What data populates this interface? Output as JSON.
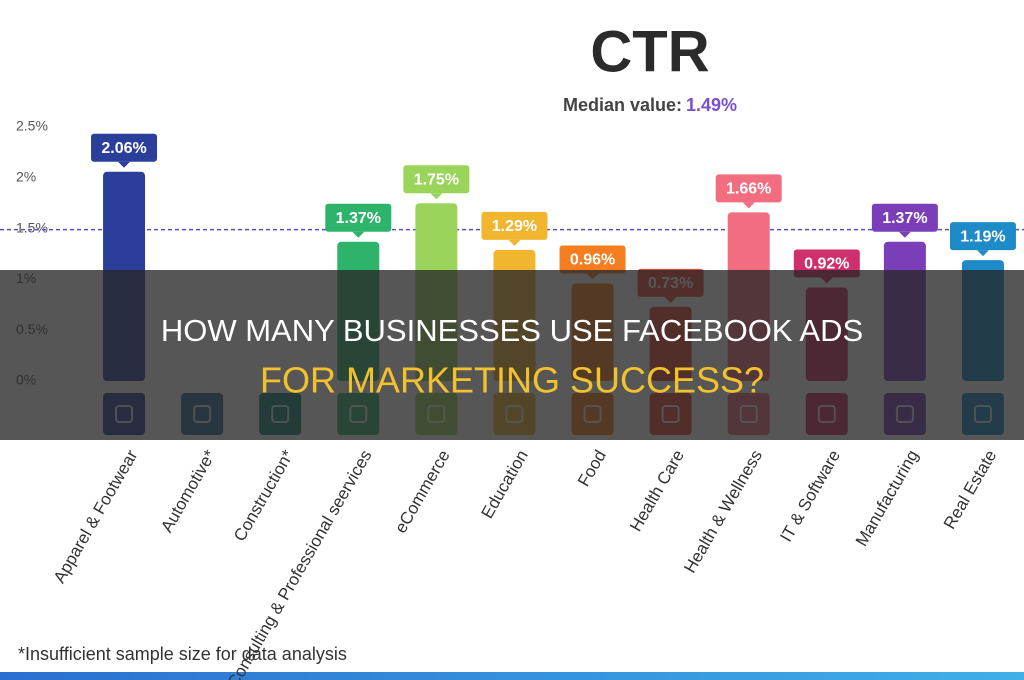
{
  "chart_data": {
    "type": "bar",
    "title": "CTR",
    "median": {
      "label": "Median value:",
      "value": 1.49,
      "value_label": "1.49%"
    },
    "categories": [
      "Apparel & Footwear",
      "Automotive*",
      "Construction*",
      "Consulting & Professional seervices",
      "eCommerce",
      "Education",
      "Food",
      "Health Care",
      "Health & Wellness",
      "IT & Software",
      "Manufacturing",
      "Real Estate"
    ],
    "values": [
      2.06,
      null,
      null,
      1.37,
      1.75,
      1.29,
      0.96,
      0.73,
      1.66,
      0.92,
      1.37,
      1.19
    ],
    "value_labels": [
      "2.06%",
      null,
      null,
      "1.37%",
      "1.75%",
      "1.29%",
      "0.96%",
      "0.73%",
      "1.66%",
      "0.92%",
      "1.37%",
      "1.19%"
    ],
    "colors": [
      "#2b3f9a",
      "#2a6fa0",
      "#1a8a7a",
      "#2db36a",
      "#9bd45a",
      "#f2b530",
      "#f57c1f",
      "#e84a3a",
      "#f26d80",
      "#cf2f6a",
      "#7a3fb8",
      "#1e8ac8"
    ],
    "ylim": [
      0,
      2.5
    ],
    "yticks": [
      {
        "value": 0,
        "label": "0%"
      },
      {
        "value": 0.5,
        "label": "0.5%"
      },
      {
        "value": 1,
        "label": "1%"
      },
      {
        "value": 1.5,
        "label": "1.5%"
      },
      {
        "value": 2,
        "label": "2%"
      },
      {
        "value": 2.5,
        "label": "2.5%"
      }
    ],
    "footnote": "*Insufficient sample size for data analysis"
  },
  "banner": {
    "line1": "HOW MANY BUSINESSES USE FACEBOOK ADS",
    "line2": "FOR MARKETING SUCCESS?"
  }
}
